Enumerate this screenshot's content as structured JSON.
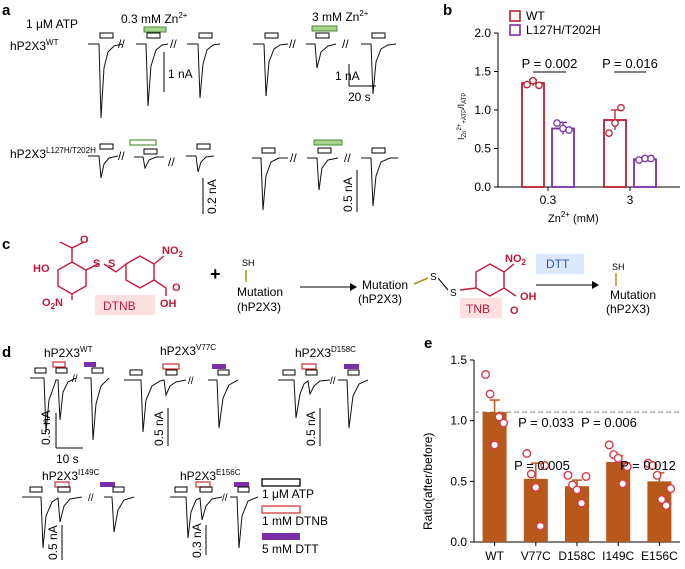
{
  "panels": {
    "a": {
      "label": "a",
      "atp": "1 μM ATP",
      "zn_low": "0.3 mM Zn",
      "zn_high": "3 mM Zn",
      "sup": "2+",
      "row1": "hP2X3",
      "row1_sup": "WT",
      "row2": "hP2X3",
      "row2_sup": "L127H/T202H",
      "scale_1nA": "1 nA",
      "scale_20s": "20 s",
      "scale_02": "0.2 nA",
      "scale_05": "0.5 nA",
      "break_mark": "//"
    },
    "b": {
      "label": "b"
    },
    "c": {
      "label": "c",
      "dtnb": "DTNB",
      "tnb": "TNB",
      "dtt": "DTT",
      "sh": "SH",
      "mutation": "Mutation",
      "hp2x3": "(hP2X3)",
      "plus": "+",
      "ho": "HO",
      "oh": "OH",
      "no2": "NO",
      "no2_sub": "2",
      "o2n": "O",
      "o2n_sub": "2",
      "o2n_n": "N",
      "o": "O",
      "s": "S"
    },
    "d": {
      "label": "d",
      "title": "hP2X3",
      "wt": "WT",
      "v77c": "V77C",
      "d158c": "D158C",
      "i149c": "I149C",
      "e156c": "E156C",
      "s05": "0.5 nA",
      "s03": "0.3 nA",
      "s10": "10 s",
      "legend_atp": "1 μM ATP",
      "legend_dtnb": "1 mM DTNB",
      "legend_dtt": "5 mM DTT",
      "break_mark": "//"
    },
    "e": {
      "label": "e"
    }
  },
  "chart_data": [
    {
      "panel": "b",
      "type": "bar",
      "categories": [
        "0.3",
        "3"
      ],
      "xlabel": "Zn",
      "xlabel_sup": "2+",
      "xlabel_unit": "(mM)",
      "ylabel": "I",
      "ylabel_sub1": "Zn",
      "ylabel_sup1": "2+",
      "ylabel_sub1b": "+ATP",
      "ylabel_mid": "/I",
      "ylabel_sub2": "ATP",
      "ylim": [
        0,
        2.0
      ],
      "yticks": [
        "0.0",
        "0.5",
        "1.0",
        "1.5",
        "2.0"
      ],
      "series": [
        {
          "name": "WT",
          "color": "#b8202e",
          "values": [
            1.35,
            0.87
          ],
          "err": [
            0.04,
            0.13
          ],
          "points": [
            [
              1.33,
              1.38,
              1.32
            ],
            [
              0.7,
              0.83,
              1.03
            ]
          ]
        },
        {
          "name": "L127H/T202H",
          "color": "#7a2fa8",
          "values": [
            0.76,
            0.36
          ],
          "err": [
            0.08,
            0.02
          ],
          "points": [
            [
              0.83,
              0.76,
              0.74
            ],
            [
              0.35,
              0.37,
              0.37
            ]
          ]
        }
      ],
      "annotations": [
        "P = 0.002",
        "P = 0.016"
      ]
    },
    {
      "panel": "e",
      "type": "bar",
      "categories": [
        "WT",
        "V77C",
        "D158C",
        "I149C",
        "E156C"
      ],
      "ylabel": "Ratio(after/before)",
      "ylim": [
        0,
        1.5
      ],
      "yticks": [
        "0.0",
        "0.5",
        "1.0",
        "1.5"
      ],
      "reference_line": 1.07,
      "bar_color": "#b8581a",
      "point_color": "#d63a4b",
      "values": [
        1.07,
        0.52,
        0.46,
        0.66,
        0.5
      ],
      "err": [
        0.1,
        0.13,
        0.05,
        0.05,
        0.07
      ],
      "points": [
        [
          1.38,
          1.22,
          0.8,
          1.03,
          0.98
        ],
        [
          0.73,
          0.56,
          0.45,
          0.13,
          0.63
        ],
        [
          0.55,
          0.47,
          0.43,
          0.32,
          0.54
        ],
        [
          0.8,
          0.72,
          0.69,
          0.48,
          0.62
        ],
        [
          0.65,
          0.63,
          0.55,
          0.35,
          0.3,
          0.44
        ]
      ],
      "annotations": [
        "P = 0.033",
        "P = 0.005",
        "P = 0.006",
        "P = 0.012"
      ]
    }
  ]
}
